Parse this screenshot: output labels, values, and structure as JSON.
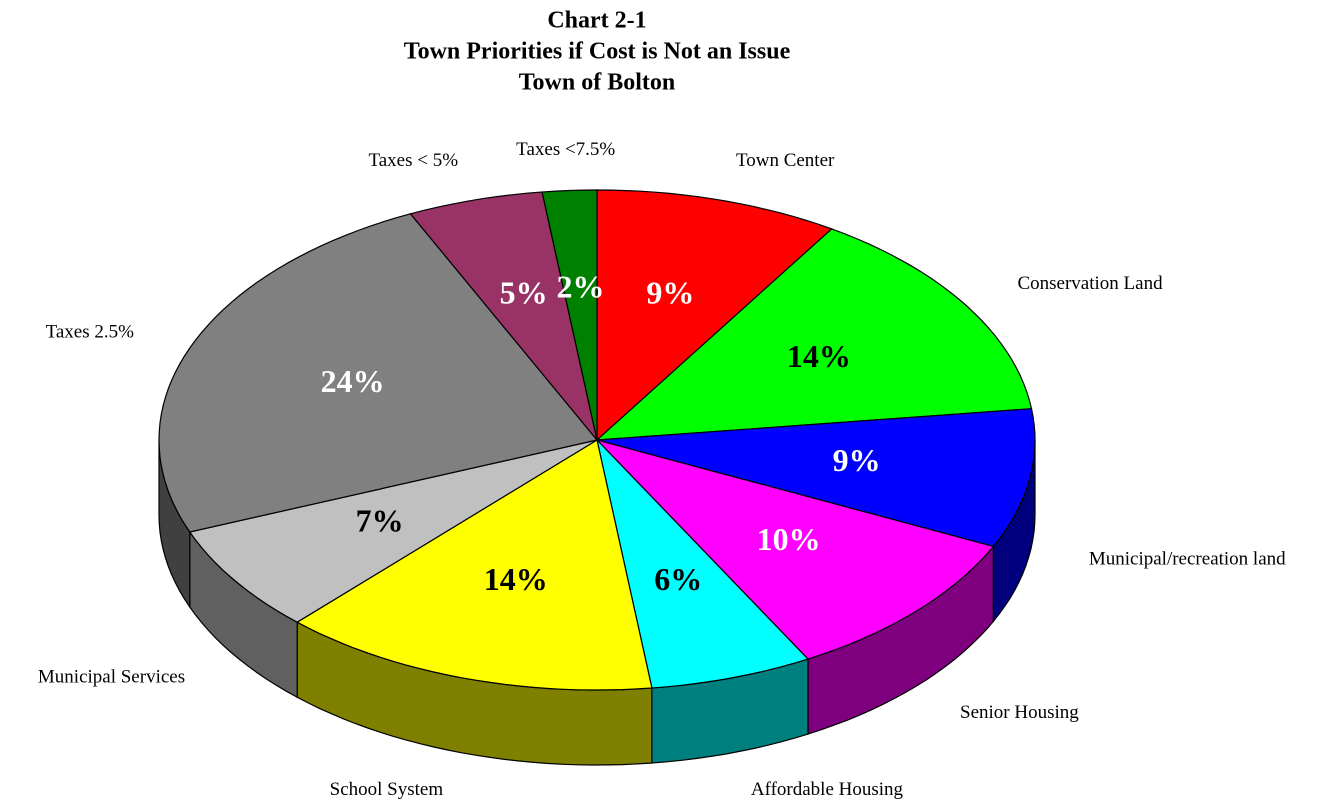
{
  "chart_data": {
    "type": "pie3d",
    "title": [
      "Chart 2-1",
      "Town Priorities if Cost is Not an Issue",
      "Town of Bolton"
    ],
    "categories": [
      "Town  Center",
      "Conservation Land",
      "Municipal/recreation land",
      "Senior Housing",
      "Affordable Housing",
      "School System",
      "Municipal Services",
      "Taxes 2.5%",
      "Taxes < 5%",
      "Taxes  <7.5%"
    ],
    "values": [
      9,
      14,
      9,
      10,
      6,
      14,
      7,
      24,
      5,
      2
    ],
    "value_labels": [
      "9%",
      "14%",
      "9%",
      "10%",
      "6%",
      "14%",
      "7%",
      "24%",
      "5%",
      "2%"
    ],
    "colors": [
      "#ff0000",
      "#00ff00",
      "#0000ff",
      "#ff00ff",
      "#00ffff",
      "#ffff00",
      "#c0c0c0",
      "#808080",
      "#993366",
      "#008000"
    ]
  }
}
